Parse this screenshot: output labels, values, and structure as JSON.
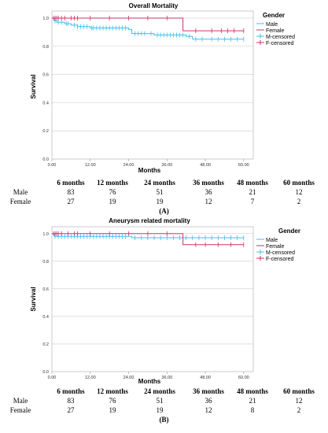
{
  "panels": [
    {
      "chart_data": {
        "type": "line",
        "title": "Overall Mortality",
        "xlabel": "Months",
        "ylabel": "Survival",
        "xlim": [
          0,
          63
        ],
        "ylim": [
          0,
          1.05
        ],
        "xticks": [
          0,
          12,
          24,
          36,
          48,
          60
        ],
        "xtick_labels": [
          "0.00",
          "12.00",
          "24.00",
          "36.00",
          "48.00",
          "60.00"
        ],
        "yticks": [
          0,
          0.2,
          0.4,
          0.6,
          0.8,
          1.0
        ],
        "ytick_labels": [
          "0.0",
          "0.2",
          "0.4",
          "0.6",
          "0.8",
          "1.0"
        ],
        "grid": "horizontal",
        "legend_title": "Gender",
        "legend_position": "right",
        "legend": [
          "Male",
          "Female",
          "M-censored",
          "F-censored"
        ],
        "series": [
          {
            "name": "Male",
            "color": "#3cc0f0",
            "steps": [
              [
                0,
                1.0
              ],
              [
                0.8,
                0.98
              ],
              [
                1.5,
                0.97
              ],
              [
                4,
                0.96
              ],
              [
                6,
                0.95
              ],
              [
                8,
                0.94
              ],
              [
                12,
                0.93
              ],
              [
                24,
                0.92
              ],
              [
                25,
                0.89
              ],
              [
                32,
                0.88
              ],
              [
                42,
                0.87
              ],
              [
                44,
                0.85
              ],
              [
                60,
                0.85
              ]
            ],
            "censored": [
              1,
              2,
              3,
              4.5,
              5,
              7,
              8,
              9,
              10,
              11,
              12.5,
              13,
              14,
              15,
              16,
              17,
              18,
              19,
              20,
              21,
              22,
              23,
              26,
              27,
              28,
              29,
              31,
              33,
              34,
              35,
              36,
              37,
              38,
              39,
              40,
              41,
              43,
              45,
              47,
              50,
              52,
              54,
              56,
              58,
              60
            ]
          },
          {
            "name": "Female",
            "color": "#d2306a",
            "steps": [
              [
                0,
                1.0
              ],
              [
                41,
                1.0
              ],
              [
                41,
                0.91
              ],
              [
                60,
                0.91
              ]
            ],
            "censored": [
              0.5,
              1,
              1.5,
              2,
              3,
              4,
              6,
              7,
              8,
              12,
              18,
              24,
              30,
              36,
              45,
              50,
              53,
              55,
              57,
              60
            ]
          }
        ]
      },
      "risk_table": {
        "columns": [
          "6 months",
          "12 months",
          "24 months",
          "36 months",
          "48 months",
          "60 months"
        ],
        "rows": [
          {
            "label": "Male",
            "values": [
              "83",
              "76",
              "51",
              "36",
              "21",
              "12"
            ]
          },
          {
            "label": "Female",
            "values": [
              "27",
              "19",
              "19",
              "12",
              "7",
              "2"
            ]
          }
        ]
      },
      "label": "(A)"
    },
    {
      "chart_data": {
        "type": "line",
        "title": "Aneurysm related mortality",
        "xlabel": "Months",
        "ylabel": "Survival",
        "xlim": [
          0,
          63
        ],
        "ylim": [
          0,
          1.05
        ],
        "xticks": [
          0,
          12,
          24,
          36,
          48,
          60
        ],
        "xtick_labels": [
          "0.00",
          "12.00",
          "24.00",
          "36.00",
          "48.00",
          "60.00"
        ],
        "yticks": [
          0,
          0.2,
          0.4,
          0.6,
          0.8,
          1.0
        ],
        "ytick_labels": [
          "0.0",
          "0.2",
          "0.4",
          "0.6",
          "0.8",
          "1.0"
        ],
        "grid": "horizontal",
        "legend_title": "Gender",
        "legend_position": "right",
        "legend": [
          "Male",
          "Female",
          "M-censored",
          "F-censored"
        ],
        "series": [
          {
            "name": "Male",
            "color": "#3cc0f0",
            "steps": [
              [
                0,
                1.0
              ],
              [
                0.8,
                0.98
              ],
              [
                24,
                0.98
              ],
              [
                25,
                0.97
              ],
              [
                60,
                0.97
              ]
            ],
            "censored": [
              1,
              2,
              3,
              4,
              5,
              6,
              7,
              8,
              9,
              10,
              11,
              12,
              13,
              14,
              15,
              16,
              17,
              18,
              19,
              20,
              21,
              22,
              23,
              26,
              28,
              30,
              32,
              34,
              36,
              38,
              40,
              42,
              44,
              46,
              48,
              50,
              52,
              54,
              56,
              58,
              60
            ]
          },
          {
            "name": "Female",
            "color": "#d2306a",
            "steps": [
              [
                0,
                1.0
              ],
              [
                41,
                1.0
              ],
              [
                41,
                0.92
              ],
              [
                60,
                0.92
              ]
            ],
            "censored": [
              0.5,
              1,
              1.5,
              2,
              3,
              5,
              7,
              8,
              12,
              18,
              24,
              30,
              36,
              45,
              48,
              52,
              56,
              60
            ]
          }
        ]
      },
      "risk_table": {
        "columns": [
          "6 months",
          "12 months",
          "24 months",
          "36 months",
          "48 months",
          "60 months"
        ],
        "rows": [
          {
            "label": "Male",
            "values": [
              "83",
              "76",
              "51",
              "36",
              "21",
              "12"
            ]
          },
          {
            "label": "Female",
            "values": [
              "27",
              "19",
              "19",
              "12",
              "8",
              "2"
            ]
          }
        ]
      },
      "label": "(B)"
    }
  ]
}
